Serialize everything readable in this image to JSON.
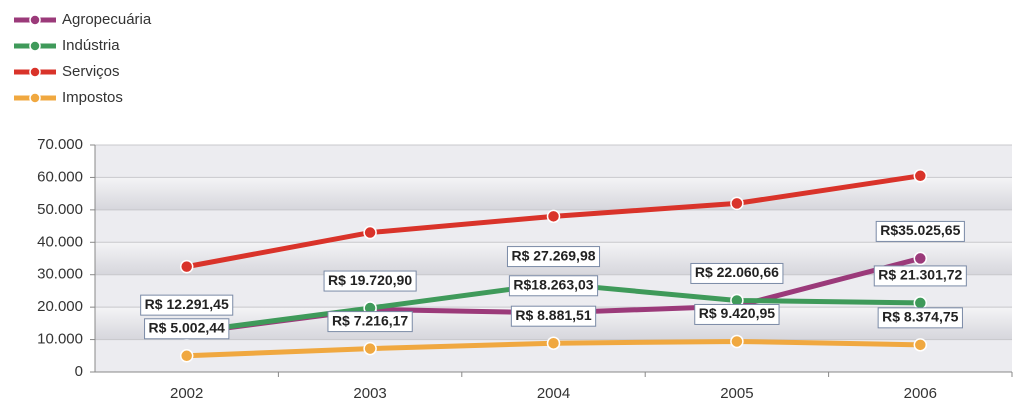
{
  "chart_data": {
    "type": "line",
    "categories": [
      "2002",
      "2003",
      "2004",
      "2005",
      "2006"
    ],
    "series": [
      {
        "name": "Agropecuária",
        "color": "#9b3a7a",
        "values": [
          12000,
          19300,
          18263.03,
          20300,
          35025.65
        ],
        "value_labels": [
          null,
          null,
          "R$18.263,03",
          null,
          "R$35.025,65"
        ]
      },
      {
        "name": "Indústria",
        "color": "#3f9a5a",
        "values": [
          12291.45,
          19720.9,
          27269.98,
          22060.66,
          21301.72
        ],
        "value_labels": [
          "R$ 12.291,45",
          "R$ 19.720,90",
          "R$ 27.269,98",
          "R$ 22.060,66",
          "R$ 21.301,72"
        ]
      },
      {
        "name": "Serviços",
        "color": "#d9332a",
        "values": [
          32500,
          43000,
          48000,
          52000,
          60500
        ]
      },
      {
        "name": "Impostos",
        "color": "#f0a840",
        "values": [
          5002.44,
          7216.17,
          8881.51,
          9420.95,
          8374.75
        ],
        "value_labels": [
          "R$ 5.002,44",
          "R$ 7.216,17",
          "R$ 8.881,51",
          "R$ 9.420,95",
          "R$ 8.374,75"
        ]
      }
    ],
    "ylim": [
      0,
      70000
    ],
    "yticks": [
      0,
      {
        "value": 10000,
        "label": "10.000"
      },
      {
        "value": 20000,
        "label": "20.000"
      },
      {
        "value": 30000,
        "label": "30.000"
      },
      {
        "value": 40000,
        "label": "40.000"
      },
      {
        "value": 50000,
        "label": "50.000"
      },
      {
        "value": 60000,
        "label": "60.000"
      },
      {
        "value": 70000,
        "label": "70.000"
      }
    ],
    "grid": true,
    "legend": "top-left"
  }
}
